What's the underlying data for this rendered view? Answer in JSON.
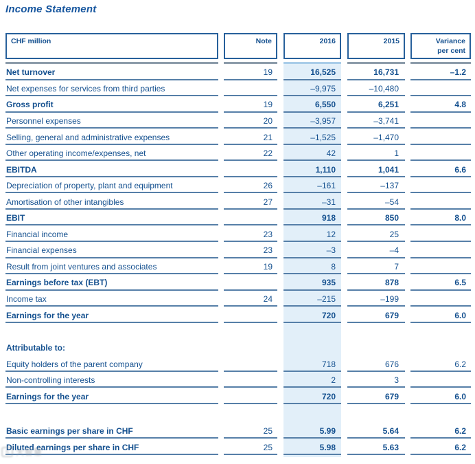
{
  "page_title": "Income Statement",
  "colors": {
    "text_navy": "#14508f",
    "row_line": "#567fa8",
    "header_box_border": "#27609b",
    "header_rule_gray": "#8c9caa",
    "header_rule_blue": "#a9cde9",
    "column_2016_highlight": "#e2eff9"
  },
  "table": {
    "header": {
      "unit": "CHF million",
      "note": "Note",
      "y2016": "2016",
      "y2015": "2015",
      "variance": "Variance\nper cent"
    },
    "rows": [
      {
        "label": "Net turnover",
        "note": "19",
        "y2016": "16,525",
        "y2015": "16,731",
        "variance": "–1.2",
        "bold": true
      },
      {
        "label": "Net expenses for services from third parties",
        "note": "",
        "y2016": "–9,975",
        "y2015": "–10,480",
        "variance": ""
      },
      {
        "label": "Gross profit",
        "note": "19",
        "y2016": "6,550",
        "y2015": "6,251",
        "variance": "4.8",
        "bold": true
      },
      {
        "label": "Personnel expenses",
        "note": "20",
        "y2016": "–3,957",
        "y2015": "–3,741",
        "variance": ""
      },
      {
        "label": "Selling, general and administrative expenses",
        "note": "21",
        "y2016": "–1,525",
        "y2015": "–1,470",
        "variance": ""
      },
      {
        "label": "Other operating income/expenses, net",
        "note": "22",
        "y2016": "42",
        "y2015": "1",
        "variance": ""
      },
      {
        "label": "EBITDA",
        "note": "",
        "y2016": "1,110",
        "y2015": "1,041",
        "variance": "6.6",
        "bold": true
      },
      {
        "label": "Depreciation of property, plant and equipment",
        "note": "26",
        "y2016": "–161",
        "y2015": "–137",
        "variance": ""
      },
      {
        "label": "Amortisation of other intangibles",
        "note": "27",
        "y2016": "–31",
        "y2015": "–54",
        "variance": ""
      },
      {
        "label": "EBIT",
        "note": "",
        "y2016": "918",
        "y2015": "850",
        "variance": "8.0",
        "bold": true
      },
      {
        "label": "Financial income",
        "note": "23",
        "y2016": "12",
        "y2015": "25",
        "variance": ""
      },
      {
        "label": "Financial expenses",
        "note": "23",
        "y2016": "–3",
        "y2015": "–4",
        "variance": ""
      },
      {
        "label": "Result from joint ventures and associates",
        "note": "19",
        "y2016": "8",
        "y2015": "7",
        "variance": ""
      },
      {
        "label": "Earnings before tax (EBT)",
        "note": "",
        "y2016": "935",
        "y2015": "878",
        "variance": "6.5",
        "bold": true
      },
      {
        "label": "Income tax",
        "note": "24",
        "y2016": "–215",
        "y2015": "–199",
        "variance": ""
      },
      {
        "label": "Earnings for the year",
        "note": "",
        "y2016": "720",
        "y2015": "679",
        "variance": "6.0",
        "bold": true
      },
      {
        "label": "Attributable to:",
        "note": "",
        "y2016": "",
        "y2015": "",
        "variance": "",
        "bold": true,
        "no_line": true,
        "spacer_before": 24
      },
      {
        "label": "Equity holders of the parent company",
        "note": "",
        "y2016": "718",
        "y2015": "676",
        "variance": "6.2"
      },
      {
        "label": "Non-controlling interests",
        "note": "",
        "y2016": "2",
        "y2015": "3",
        "variance": ""
      },
      {
        "label": "Earnings for the year",
        "note": "",
        "y2016": "720",
        "y2015": "679",
        "variance": "6.0",
        "bold": true
      },
      {
        "label": "Basic earnings per share in CHF",
        "note": "25",
        "y2016": "5.99",
        "y2015": "5.64",
        "variance": "6.2",
        "bold": true,
        "spacer_before": 27
      },
      {
        "label": "Diluted earnings per share in CHF",
        "note": "25",
        "y2016": "5.98",
        "y2015": "5.63",
        "variance": "6.2",
        "bold": true
      }
    ]
  },
  "watermark": {
    "icon": "logo-badge",
    "text": "大智慧"
  }
}
